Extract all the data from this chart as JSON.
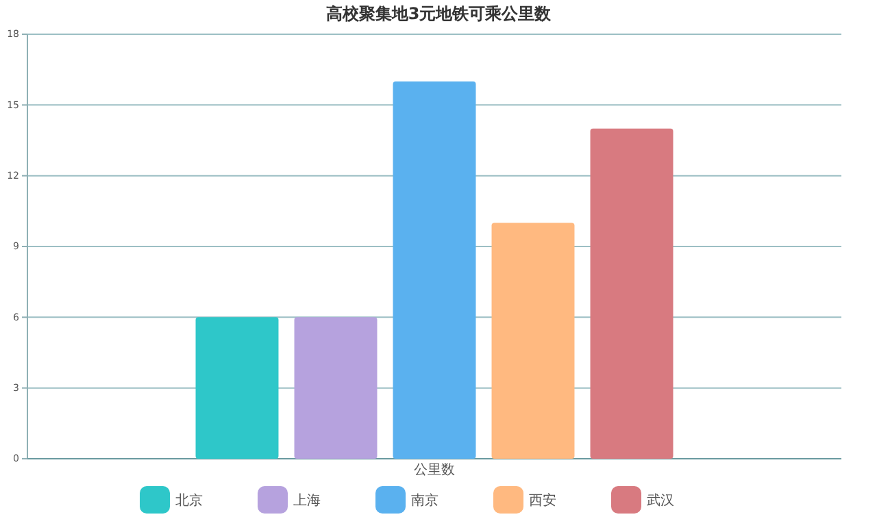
{
  "chart_data": {
    "type": "bar",
    "title": "高校聚集地3元地铁可乘公里数",
    "categories": [
      "公里数"
    ],
    "series": [
      {
        "name": "北京",
        "color": "#2ec7c9",
        "values": [
          6
        ]
      },
      {
        "name": "上海",
        "color": "#b6a2de",
        "values": [
          6
        ]
      },
      {
        "name": "南京",
        "color": "#5ab1ef",
        "values": [
          16
        ]
      },
      {
        "name": "西安",
        "color": "#ffb980",
        "values": [
          10
        ]
      },
      {
        "name": "武汉",
        "color": "#d87a80",
        "values": [
          14
        ]
      }
    ],
    "ylim": [
      0,
      18
    ],
    "yticks": [
      0,
      3,
      6,
      9,
      12,
      15,
      18
    ],
    "grid": "y",
    "legend": "bottom"
  }
}
